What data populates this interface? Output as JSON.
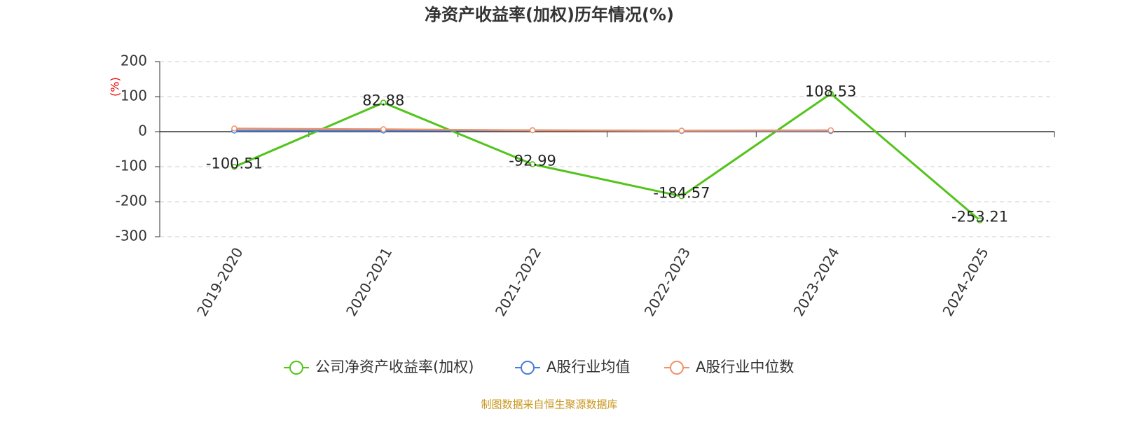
{
  "chart_data": {
    "type": "line",
    "title": "净资产收益率(加权)历年情况(%)",
    "y_label": "(%)",
    "source": "制图数据来自恒生聚源数据库",
    "categories": [
      "2019-2020",
      "2020-2021",
      "2021-2022",
      "2022-2023",
      "2023-2024",
      "2024-2025"
    ],
    "series": [
      {
        "name": "公司净资产收益率(加权)",
        "color": "#52c41a",
        "values": [
          -100.51,
          82.88,
          -92.99,
          -184.57,
          108.53,
          -253.21
        ],
        "show_labels": true
      },
      {
        "name": "A股行业均值",
        "color": "#4a7fd8",
        "values": [
          3,
          3,
          4,
          2,
          2,
          null
        ]
      },
      {
        "name": "A股行业中位数",
        "color": "#f0936a",
        "values": [
          9,
          7,
          4,
          3,
          4,
          null
        ]
      }
    ],
    "ylim": [
      -300,
      200
    ],
    "yticks": [
      -300,
      -200,
      -100,
      0,
      100,
      200
    ],
    "grid": true
  }
}
